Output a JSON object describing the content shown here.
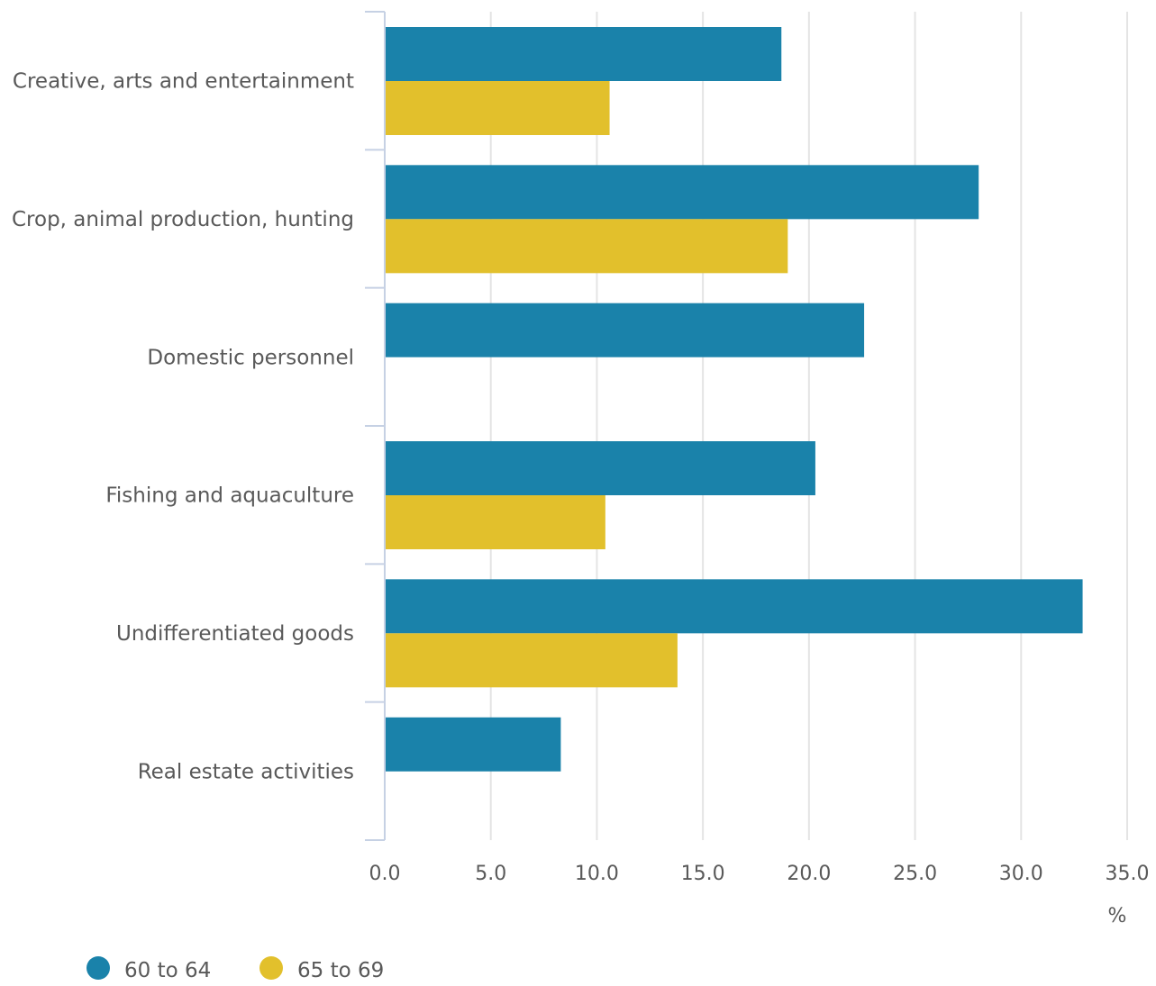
{
  "colors": {
    "series_60_64": "#1a82aa",
    "series_65_69": "#e2c02c",
    "gridline": "#e4e4e4",
    "axis": "#c6d1e4",
    "text": "#595959"
  },
  "chart_data": {
    "type": "bar",
    "orientation": "horizontal",
    "categories": [
      "Creative, arts and entertainment",
      "Crop, animal production, hunting",
      "Domestic personnel",
      "Fishing and aquaculture",
      "Undifferentiated goods",
      "Real estate activities"
    ],
    "series": [
      {
        "name": "60 to 64",
        "color": "#1a82aa",
        "values": [
          18.7,
          28.0,
          22.6,
          20.3,
          32.9,
          8.3
        ]
      },
      {
        "name": "65 to 69",
        "color": "#e2c02c",
        "values": [
          10.6,
          19.0,
          null,
          10.4,
          13.8,
          null
        ]
      }
    ],
    "xlim": [
      0,
      35
    ],
    "xticks": [
      "0.0",
      "5.0",
      "10.0",
      "15.0",
      "20.0",
      "25.0",
      "30.0",
      "35.0"
    ],
    "xunit": "%",
    "grid": true,
    "legend_position": "bottom-left"
  }
}
